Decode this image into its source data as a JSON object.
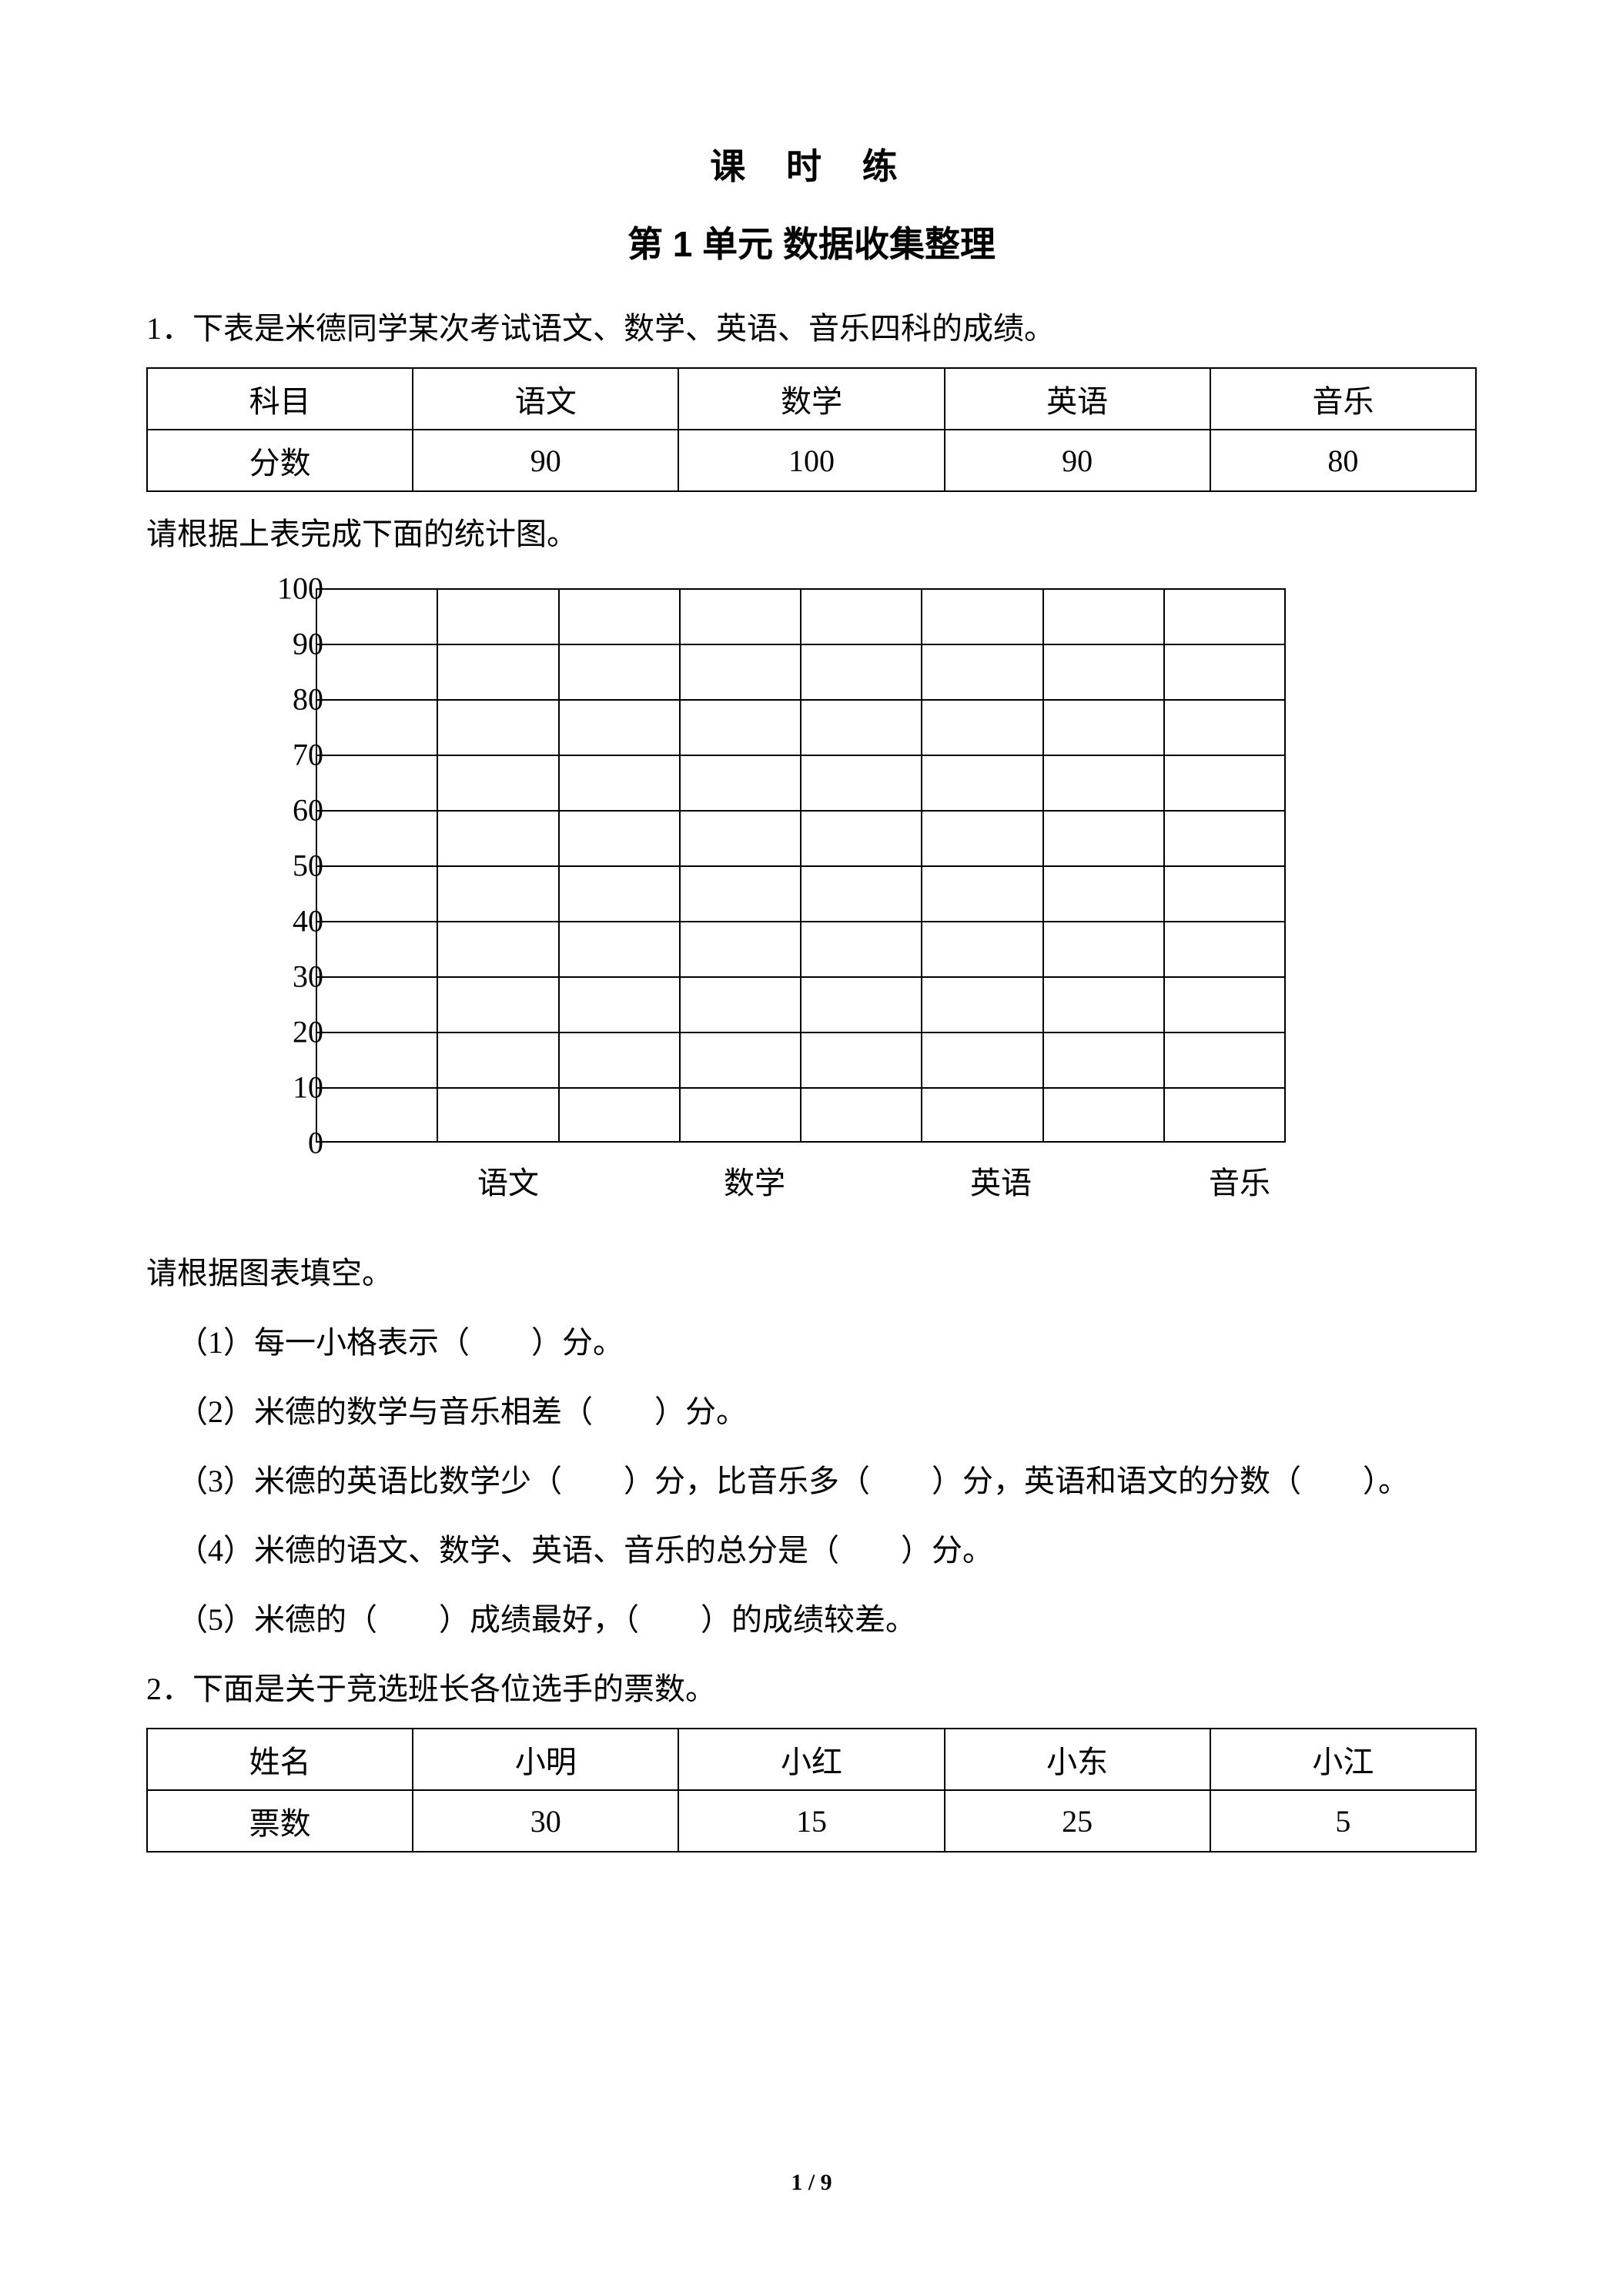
{
  "title": "课 时 练",
  "subtitle": "第 1 单元 数据收集整理",
  "q1": {
    "prompt": "1．下表是米德同学某次考试语文、数学、英语、音乐四科的成绩。",
    "table": {
      "headers": [
        "科目",
        "语文",
        "数学",
        "英语",
        "音乐"
      ],
      "row_label": "分数",
      "values": [
        "90",
        "100",
        "90",
        "80"
      ]
    },
    "instruction": "请根据上表完成下面的统计图。",
    "chart": {
      "y_ticks": [
        "100",
        "90",
        "80",
        "70",
        "60",
        "50",
        "40",
        "30",
        "20",
        "10",
        "0"
      ],
      "x_labels": [
        "语文",
        "数学",
        "英语",
        "音乐"
      ],
      "x_positions": [
        370,
        690,
        1010,
        1320
      ],
      "cols": 8
    },
    "fill_prompt": "请根据图表填空。",
    "sub1": "（1）每一小格表示（　　）分。",
    "sub2": "（2）米德的数学与音乐相差（　　）分。",
    "sub3": "（3）米德的英语比数学少（　　）分，比音乐多（　　）分，英语和语文的分数（　　）。",
    "sub4": "（4）米德的语文、数学、英语、音乐的总分是（　　）分。",
    "sub5": "（5）米德的（　　）成绩最好，（　　）的成绩较差。"
  },
  "q2": {
    "prompt": "2．下面是关于竞选班长各位选手的票数。",
    "table": {
      "headers": [
        "姓名",
        "小明",
        "小红",
        "小东",
        "小江"
      ],
      "row_label": "票数",
      "values": [
        "30",
        "15",
        "25",
        "5"
      ]
    }
  },
  "footer": "1 / 9"
}
